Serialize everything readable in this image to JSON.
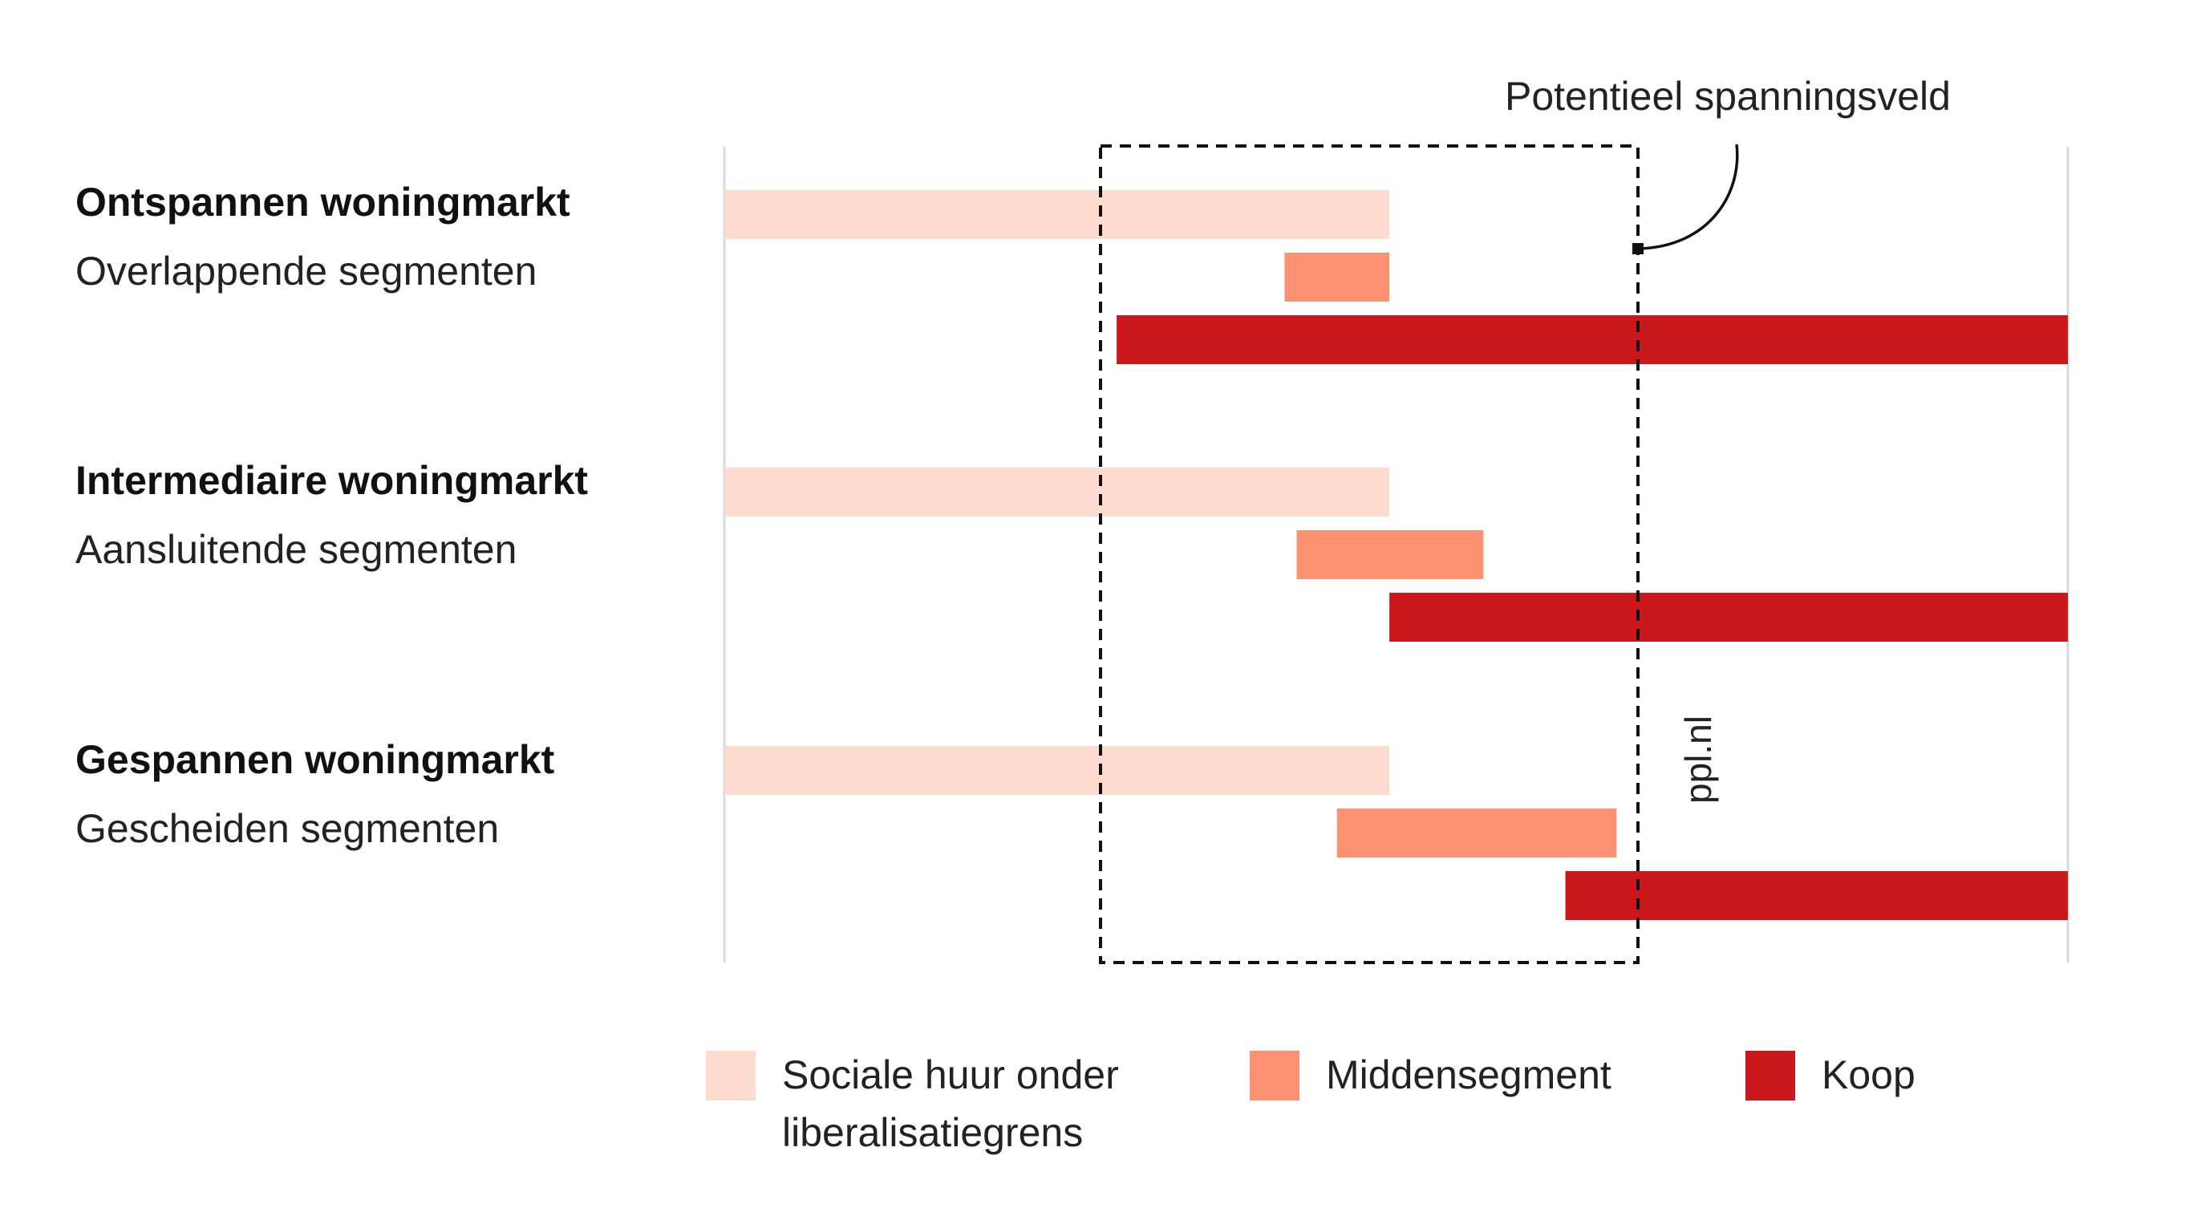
{
  "markets": [
    {
      "title": "Ontspannen woningmarkt",
      "subtitle": "Overlappende segmenten"
    },
    {
      "title": "Intermediaire woningmarkt",
      "subtitle": "Aansluitende segmenten"
    },
    {
      "title": "Gespannen woningmarkt",
      "subtitle": "Gescheiden segmenten"
    }
  ],
  "annotation": "Potentieel spanningsveld",
  "watermark": "ppl.nl",
  "legend": [
    {
      "label": "Sociale huur onder liberalisatiegrens",
      "color": "#FDDCCF"
    },
    {
      "label": "Middensegment",
      "color": "#FC9272"
    },
    {
      "label": "Koop",
      "color": "#CB181D"
    }
  ],
  "chart_data": {
    "type": "bar",
    "orientation": "horizontal",
    "scale": [
      0,
      1
    ],
    "spanning_zone": [
      0.28,
      0.68
    ],
    "groups": [
      {
        "market": "Ontspannen woningmarkt",
        "segments": [
          {
            "segment": "Sociale huur onder liberalisatiegrens",
            "start": 0.0,
            "end": 0.495
          },
          {
            "segment": "Middensegment",
            "start": 0.417,
            "end": 0.495
          },
          {
            "segment": "Koop",
            "start": 0.292,
            "end": 1.0
          }
        ]
      },
      {
        "market": "Intermediaire woningmarkt",
        "segments": [
          {
            "segment": "Sociale huur onder liberalisatiegrens",
            "start": 0.0,
            "end": 0.495
          },
          {
            "segment": "Middensegment",
            "start": 0.426,
            "end": 0.565
          },
          {
            "segment": "Koop",
            "start": 0.495,
            "end": 1.0
          }
        ]
      },
      {
        "market": "Gespannen woningmarkt",
        "segments": [
          {
            "segment": "Sociale huur onder liberalisatiegrens",
            "start": 0.0,
            "end": 0.495
          },
          {
            "segment": "Middensegment",
            "start": 0.456,
            "end": 0.664
          },
          {
            "segment": "Koop",
            "start": 0.626,
            "end": 1.0
          }
        ]
      }
    ]
  }
}
